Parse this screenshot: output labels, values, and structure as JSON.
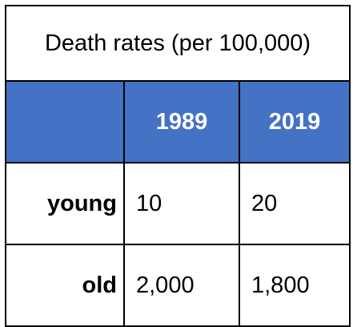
{
  "chart_data": {
    "type": "table",
    "title": "Death rates (per 100,000)",
    "columns": [
      "",
      "1989",
      "2019"
    ],
    "rows": [
      {
        "label": "young",
        "values": [
          "10",
          "20"
        ]
      },
      {
        "label": "old",
        "values": [
          "2,000",
          "1,800"
        ]
      }
    ]
  }
}
